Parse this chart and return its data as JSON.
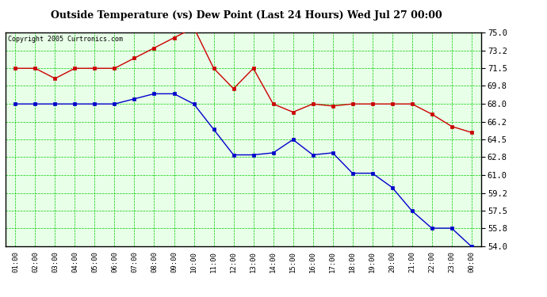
{
  "title": "Outside Temperature (vs) Dew Point (Last 24 Hours) Wed Jul 27 00:00",
  "copyright": "Copyright 2005 Curtronics.com",
  "x_labels": [
    "01:00",
    "02:00",
    "03:00",
    "04:00",
    "05:00",
    "06:00",
    "07:00",
    "08:00",
    "09:00",
    "10:00",
    "11:00",
    "12:00",
    "13:00",
    "14:00",
    "15:00",
    "16:00",
    "17:00",
    "18:00",
    "19:00",
    "20:00",
    "21:00",
    "22:00",
    "23:00",
    "00:00"
  ],
  "temp_data": [
    71.5,
    71.5,
    70.5,
    71.5,
    71.5,
    71.5,
    72.5,
    73.5,
    74.5,
    75.5,
    71.5,
    69.5,
    71.5,
    68.0,
    67.2,
    68.0,
    67.8,
    68.0,
    68.0,
    68.0,
    68.0,
    67.0,
    65.8,
    65.2
  ],
  "dew_data": [
    68.0,
    68.0,
    68.0,
    68.0,
    68.0,
    68.0,
    68.5,
    69.0,
    69.0,
    68.0,
    65.5,
    63.0,
    63.0,
    63.2,
    64.5,
    63.0,
    63.2,
    61.2,
    61.2,
    59.8,
    57.5,
    55.8,
    55.8,
    54.0
  ],
  "temp_color": "#cc0000",
  "dew_color": "#0000cc",
  "bg_color": "#e8ffe8",
  "plot_bg": "#ffffff",
  "grid_color": "#00cc00",
  "title_color": "#000000",
  "outer_bg": "#ffffff",
  "ylim": [
    54.0,
    75.0
  ],
  "yticks": [
    54.0,
    55.8,
    57.5,
    59.2,
    61.0,
    62.8,
    64.5,
    66.2,
    68.0,
    69.8,
    71.5,
    73.2,
    75.0
  ]
}
